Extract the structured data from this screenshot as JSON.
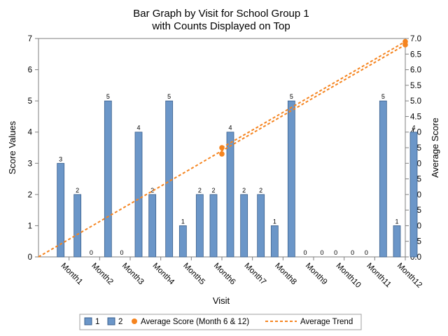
{
  "chart_data": {
    "type": "bar",
    "title": "Bar Graph by Visit for School Group 1",
    "subtitle": "with Counts Displayed on Top",
    "xlabel": "Visit",
    "ylabel": "Score Values",
    "y2label": "Average Score",
    "categories": [
      "Month1",
      "Month2",
      "Month3",
      "Month4",
      "Month5",
      "Month6",
      "Month7",
      "Month8",
      "Month9",
      "Month10",
      "Month11",
      "Month12"
    ],
    "ylim": [
      0,
      7
    ],
    "y_ticks": [
      "0",
      "1",
      "2",
      "3",
      "4",
      "5",
      "6",
      "7"
    ],
    "y2lim": [
      0,
      7
    ],
    "y2_ticks": [
      "0.0",
      "0.5",
      "1.0",
      "1.5",
      "2.0",
      "2.5",
      "3.0",
      "3.5",
      "4.0",
      "4.5",
      "5.0",
      "5.5",
      "6.0",
      "6.5",
      "7.0"
    ],
    "series": [
      {
        "name": "1",
        "values": [
          3,
          0,
          0,
          2,
          1,
          2,
          2,
          1,
          0,
          0,
          0,
          1
        ],
        "labels": [
          "3",
          "0",
          "0",
          "2",
          "1",
          "2",
          "2",
          "1",
          "0",
          "0",
          "0",
          "1"
        ]
      },
      {
        "name": "2",
        "values": [
          2,
          5,
          4,
          5,
          2,
          4,
          2,
          5,
          0,
          0,
          5,
          4
        ],
        "labels": [
          "2",
          "5",
          "4",
          "5",
          "2",
          "4",
          "2",
          "5",
          "0",
          "0",
          "5",
          "4"
        ]
      }
    ],
    "average_points": {
      "name": "Average Score (Month 6 & 12)",
      "points": [
        {
          "x": "Month6",
          "y": 3.3
        },
        {
          "x": "Month6",
          "y": 3.5
        },
        {
          "x": "Month12",
          "y": 6.8
        },
        {
          "x": "Month12",
          "y": 6.9
        }
      ]
    },
    "trend_lines": {
      "name": "Average Trend",
      "lines": [
        {
          "from": {
            "x": "Month0",
            "y": 0
          },
          "to": {
            "x": "Month12",
            "y": 6.8
          }
        },
        {
          "from": {
            "x": "Month6",
            "y": 3.5
          },
          "to": {
            "x": "Month12",
            "y": 6.9
          }
        }
      ]
    },
    "colors": {
      "bar": "#6b96c8",
      "bar_stroke": "#3a5f8c",
      "average": "#f5841f"
    },
    "legend": {
      "position": "bottom",
      "entries": [
        "1",
        "2",
        "Average Score (Month 6 & 12)",
        "Average Trend"
      ]
    },
    "grid": false
  }
}
